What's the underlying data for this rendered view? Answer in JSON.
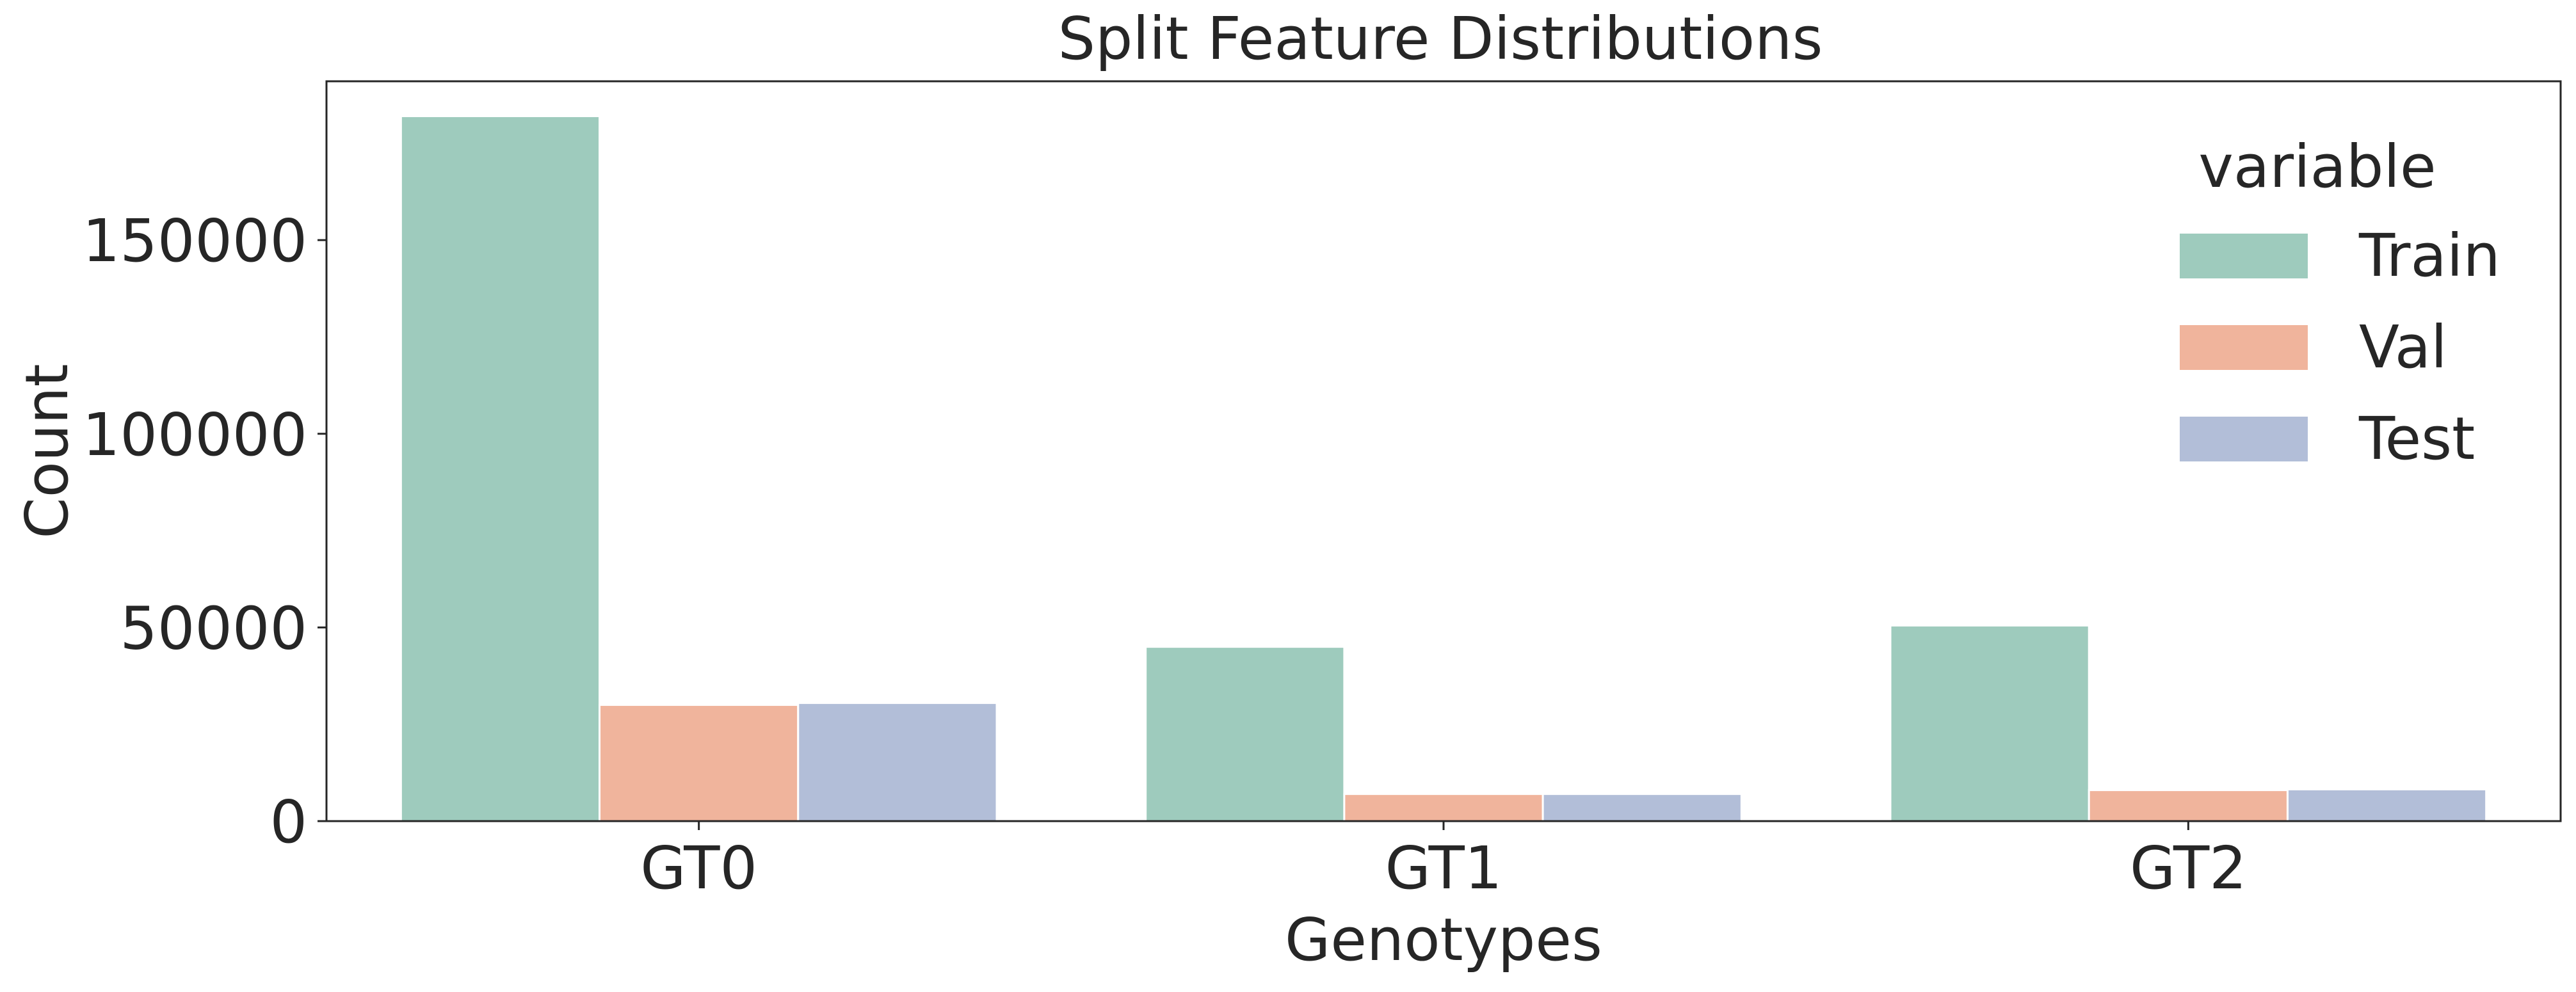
{
  "chart_data": {
    "type": "bar",
    "title": "Split Feature Distributions",
    "xlabel": "Genotypes",
    "ylabel": "Count",
    "categories": [
      "GT0",
      "GT1",
      "GT2"
    ],
    "series": [
      {
        "name": "Train",
        "color": "#9ecbbd",
        "values": [
          182000,
          45000,
          50500
        ]
      },
      {
        "name": "Val",
        "color": "#f0b49c",
        "values": [
          30000,
          7000,
          8000
        ]
      },
      {
        "name": "Test",
        "color": "#b2bed8",
        "values": [
          30500,
          7000,
          8200
        ]
      }
    ],
    "ylim": [
      0,
      191000
    ],
    "yticks": [
      0,
      50000,
      100000,
      150000
    ],
    "legend": {
      "title": "variable",
      "placement": "top-right"
    },
    "grid": false
  }
}
